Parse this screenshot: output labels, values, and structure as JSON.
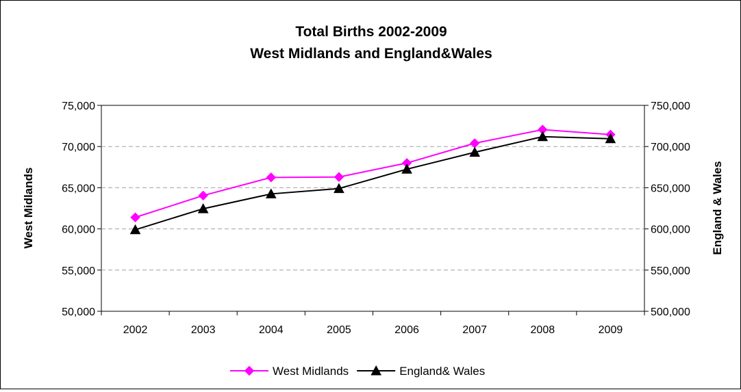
{
  "chart_data": {
    "type": "line",
    "title": [
      "Total Births 2002-2009",
      "West Midlands and England&Wales"
    ],
    "categories": [
      "2002",
      "2003",
      "2004",
      "2005",
      "2006",
      "2007",
      "2008",
      "2009"
    ],
    "y_left": {
      "label": "West Midlands",
      "range": [
        50000,
        75000
      ],
      "ticks": [
        "50,000",
        "55,000",
        "60,000",
        "65,000",
        "70,000",
        "75,000"
      ]
    },
    "y_right": {
      "label": "England & Wales",
      "range": [
        500000,
        750000
      ],
      "ticks": [
        "500,000",
        "550,000",
        "600,000",
        "650,000",
        "700,000",
        "750,000"
      ]
    },
    "grid": "horizontal dashed",
    "legend_position": "bottom",
    "series": [
      {
        "name": "West Midlands",
        "axis": "left",
        "marker": "diamond",
        "color": "#ff00ff",
        "values": [
          61400,
          64050,
          66250,
          66300,
          68000,
          70400,
          72050,
          71450
        ]
      },
      {
        "name": "England& Wales",
        "axis": "right",
        "marker": "triangle",
        "color": "#000000",
        "values": [
          599000,
          624500,
          642500,
          649000,
          672500,
          693000,
          712000,
          709500
        ]
      }
    ]
  }
}
